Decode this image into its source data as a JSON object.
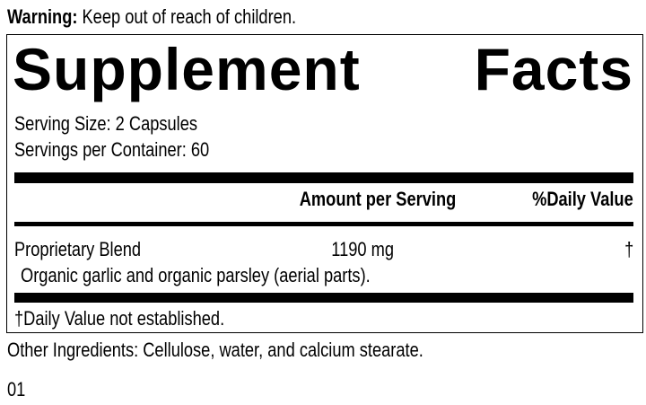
{
  "warning": {
    "label": "Warning:",
    "text": " Keep out of reach of children."
  },
  "facts": {
    "title_word1": "Supplement",
    "title_word2": "Facts",
    "serving_size": "Serving Size: 2 Capsules",
    "servings_per_container": "Servings per Container: 60",
    "header_amount": "Amount per Serving",
    "header_dv": "%Daily Value",
    "rows": [
      {
        "name": "Proprietary Blend",
        "amount": "1190 mg",
        "dv": "†",
        "description": "Organic garlic and organic parsley (aerial parts)."
      }
    ],
    "footnote": "†Daily Value not established."
  },
  "other_ingredients": "Other Ingredients: Cellulose, water, and calcium stearate.",
  "code": "01"
}
